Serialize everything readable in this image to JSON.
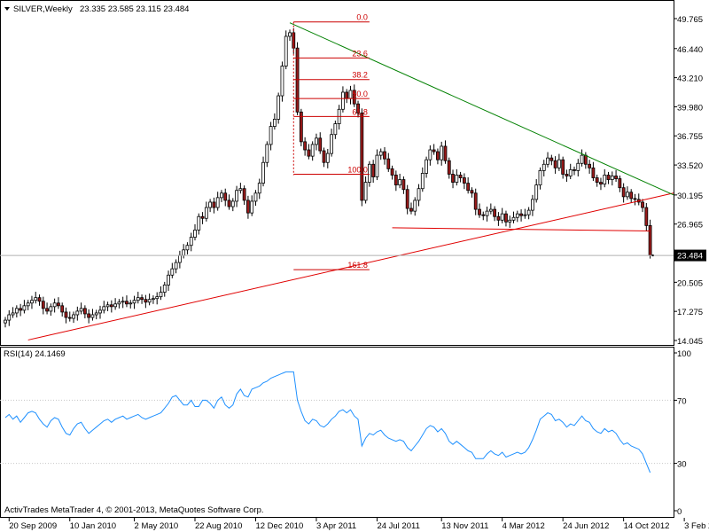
{
  "chart_data": [
    {
      "type": "candlestick",
      "title": "SILVER,Weekly",
      "ohlc_header": "23.335 23.585 23.115 23.484",
      "last_price_label": "23.484",
      "ylim": [
        14.045,
        49.765
      ],
      "yticks": [
        "49.765",
        "46.440",
        "43.210",
        "39.980",
        "36.755",
        "33.520",
        "30.195",
        "26.965",
        "23.735",
        "20.505",
        "17.275",
        "14.045"
      ],
      "xticks": [
        "20 Sep 2009",
        "10 Jan 2010",
        "2 May 2010",
        "22 Aug 2010",
        "12 Dec 2010",
        "3 Apr 2011",
        "24 Jul 2011",
        "13 Nov 2011",
        "4 Mar 2012",
        "24 Jun 2012",
        "14 Oct 2012",
        "3 Feb 2013"
      ],
      "close": [
        16.3,
        16.9,
        17.1,
        17.6,
        17.4,
        17.9,
        18.2,
        18.5,
        18.8,
        18.4,
        17.6,
        17.3,
        17.8,
        18.2,
        17.9,
        17.2,
        16.6,
        16.5,
        16.9,
        17.3,
        17.6,
        17.0,
        16.6,
        16.9,
        17.1,
        17.4,
        17.8,
        18.0,
        17.8,
        18.1,
        18.3,
        18.4,
        18.1,
        18.2,
        18.5,
        18.8,
        18.6,
        18.3,
        18.6,
        18.7,
        18.9,
        19.4,
        20.2,
        21.3,
        22.0,
        22.7,
        23.5,
        24.1,
        24.6,
        25.5,
        26.3,
        27.8,
        27.6,
        28.8,
        29.4,
        28.8,
        29.9,
        30.4,
        29.6,
        28.9,
        29.5,
        30.7,
        30.9,
        29.6,
        28.2,
        29.5,
        30.4,
        31.5,
        33.8,
        35.8,
        37.8,
        38.6,
        41.2,
        44.5,
        47.8,
        48.2,
        46.5,
        39.4,
        36.1,
        35.2,
        34.5,
        35.8,
        36.5,
        35.1,
        33.8,
        34.8,
        36.9,
        38.1,
        39.7,
        41.6,
        40.9,
        41.8,
        40.3,
        39.3,
        29.6,
        31.6,
        33.6,
        32.2,
        34.6,
        35.0,
        34.2,
        33.1,
        32.4,
        31.3,
        31.9,
        30.8,
        28.7,
        28.4,
        29.6,
        30.9,
        32.6,
        34.1,
        35.2,
        35.0,
        34.1,
        35.6,
        34.0,
        32.5,
        31.6,
        32.4,
        32.1,
        31.5,
        30.7,
        30.4,
        28.6,
        28.0,
        27.9,
        28.4,
        28.6,
        27.8,
        27.4,
        28.1,
        27.2,
        27.4,
        27.7,
        28.1,
        27.9,
        28.0,
        28.5,
        29.7,
        31.3,
        32.9,
        33.6,
        34.3,
        34.0,
        33.2,
        34.1,
        32.5,
        32.3,
        33.0,
        32.9,
        33.7,
        34.6,
        33.6,
        33.2,
        32.1,
        31.6,
        31.4,
        32.4,
        31.9,
        32.3,
        32.0,
        31.0,
        30.0,
        30.5,
        29.8,
        29.7,
        29.4,
        28.8,
        26.8,
        23.484
      ],
      "annotations": {
        "fibonacci_levels": [
          "0.0",
          "23.6",
          "38.2",
          "50.0",
          "61.8",
          "100.0",
          "161.8"
        ],
        "trendlines": [
          "resistance",
          "support",
          "horizontal"
        ]
      }
    },
    {
      "type": "line",
      "title": "RSI(14) 24.1469",
      "ylim": [
        0,
        100
      ],
      "yticks": [
        "100",
        "70",
        "30",
        "0"
      ],
      "values": [
        59,
        61,
        58,
        60,
        56,
        59,
        62,
        63,
        62,
        58,
        55,
        53,
        57,
        59,
        58,
        53,
        49,
        48,
        52,
        55,
        56,
        52,
        49,
        51,
        53,
        55,
        57,
        58,
        56,
        58,
        59,
        60,
        58,
        59,
        60,
        61,
        59,
        58,
        59,
        60,
        61,
        62,
        65,
        68,
        72,
        73,
        70,
        67,
        67,
        70,
        66,
        66,
        70,
        70,
        68,
        65,
        70,
        72,
        67,
        65,
        67,
        74,
        77,
        73,
        72,
        77,
        78,
        79,
        81,
        82,
        84,
        85,
        86,
        87,
        88,
        88,
        88,
        70,
        63,
        57,
        55,
        58,
        57,
        54,
        53,
        55,
        58,
        60,
        63,
        64,
        62,
        64,
        60,
        58,
        41,
        46,
        49,
        48,
        50,
        51,
        48,
        46,
        45,
        44,
        45,
        44,
        40,
        38,
        41,
        44,
        48,
        52,
        54,
        53,
        50,
        52,
        49,
        44,
        42,
        44,
        42,
        40,
        38,
        37,
        33,
        33,
        33,
        36,
        38,
        36,
        35,
        37,
        34,
        35,
        36,
        37,
        36,
        37,
        40,
        45,
        51,
        58,
        60,
        62,
        61,
        57,
        58,
        56,
        53,
        55,
        54,
        57,
        60,
        57,
        56,
        52,
        50,
        49,
        52,
        50,
        51,
        49,
        45,
        42,
        43,
        41,
        40,
        39,
        36,
        30,
        24.1469
      ]
    }
  ],
  "footer_text": "ActivTrades MetaTrader 4, © 2001-2013, MetaQuotes Software Corp.",
  "colors": {
    "background": "#ffffff",
    "candle_body": "#000000",
    "candle_bear_fill": "#9a1a1a",
    "support_line": "#e00000",
    "resistance_line": "#008000",
    "fibo": "#cc0000",
    "rsi_line": "#1e90ff",
    "grid": "#c8c8c8"
  }
}
